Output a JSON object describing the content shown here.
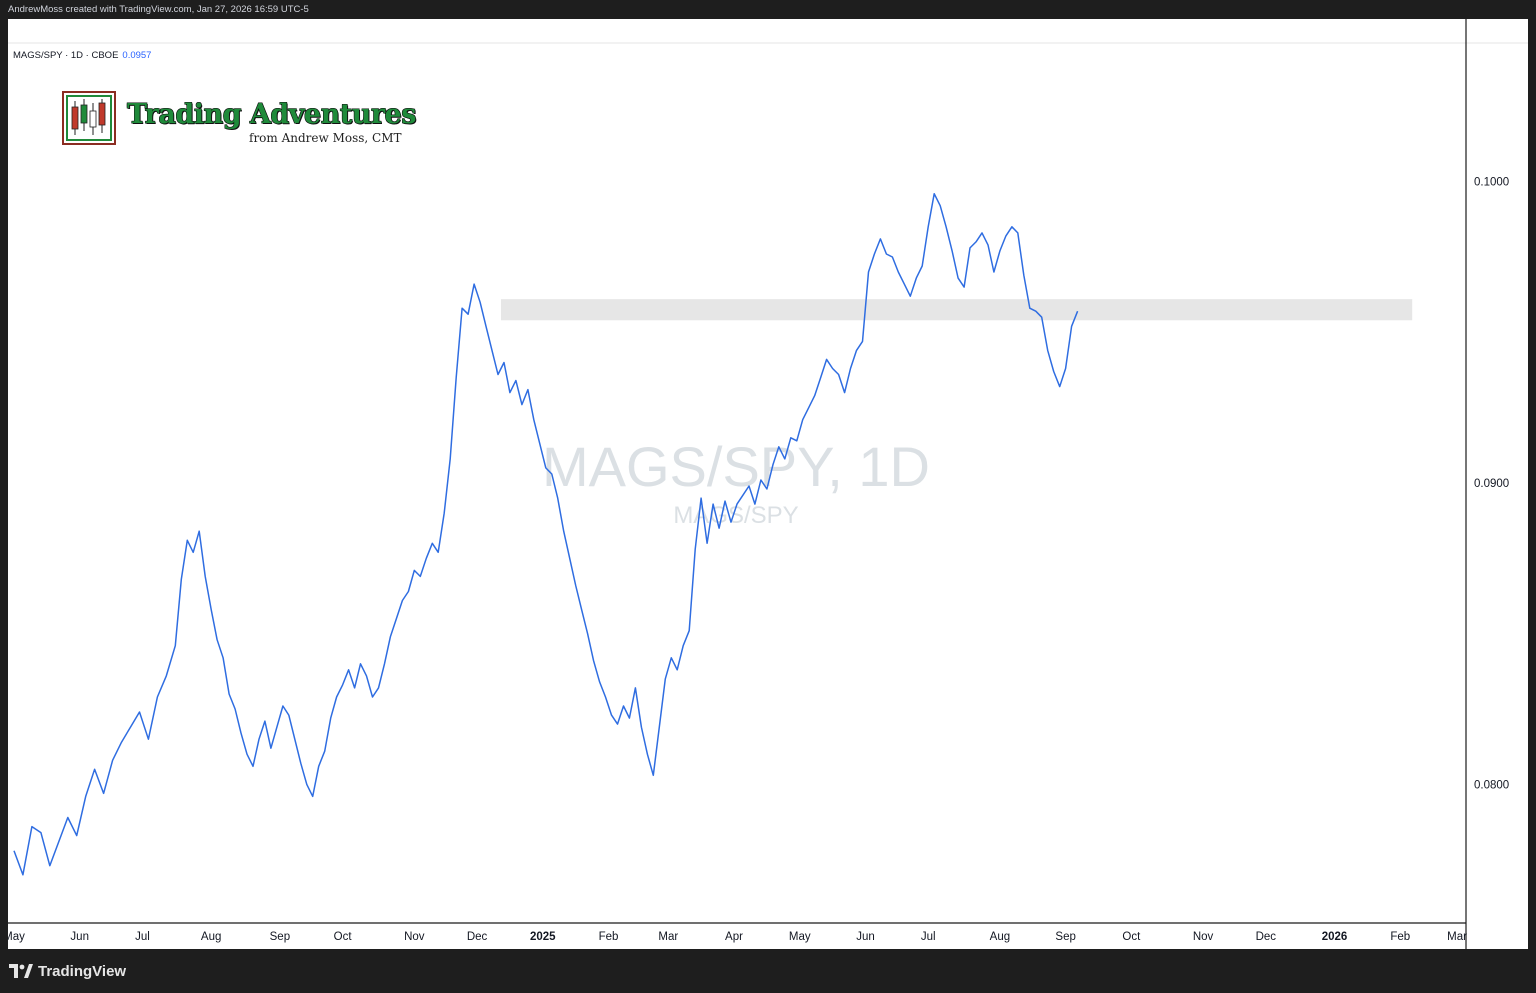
{
  "header": {
    "credit": "AndrewMoss created with TradingView.com, Jan 27, 2026 16:59 UTC-5"
  },
  "legend": {
    "symbol": "MAGS/SPY · 1D · CBOE",
    "last_value": "0.0957"
  },
  "brand": {
    "title": "Trading Adventures",
    "subtitle": "from Andrew Moss, CMT"
  },
  "watermark": {
    "line1": "MAGS/SPY, 1D",
    "line2": "MAGS/SPY"
  },
  "footer": {
    "logo_text": "TradingView"
  },
  "colors": {
    "line": "#2f6de1",
    "zone": "#e6e6e6",
    "accent_value": "#2962ff"
  },
  "chart_data": {
    "type": "line",
    "series": [
      {
        "values": [
          [
            0,
            0.0778
          ],
          [
            3,
            0.077
          ],
          [
            6,
            0.0786
          ],
          [
            9,
            0.0784
          ],
          [
            12,
            0.0773
          ],
          [
            15,
            0.0781
          ],
          [
            18,
            0.0789
          ],
          [
            21,
            0.0783
          ],
          [
            24,
            0.0796
          ],
          [
            27,
            0.0805
          ],
          [
            30,
            0.0797
          ],
          [
            33,
            0.0808
          ],
          [
            36,
            0.0814
          ],
          [
            39,
            0.0819
          ],
          [
            42,
            0.0824
          ],
          [
            45,
            0.0815
          ],
          [
            48,
            0.0829
          ],
          [
            51,
            0.0836
          ],
          [
            54,
            0.0846
          ],
          [
            56,
            0.0868
          ],
          [
            58,
            0.0881
          ],
          [
            60,
            0.0877
          ],
          [
            62,
            0.0884
          ],
          [
            64,
            0.0869
          ],
          [
            66,
            0.0858
          ],
          [
            68,
            0.0848
          ],
          [
            70,
            0.0842
          ],
          [
            72,
            0.083
          ],
          [
            74,
            0.0825
          ],
          [
            76,
            0.0817
          ],
          [
            78,
            0.081
          ],
          [
            80,
            0.0806
          ],
          [
            82,
            0.0815
          ],
          [
            84,
            0.0821
          ],
          [
            86,
            0.0812
          ],
          [
            88,
            0.0819
          ],
          [
            90,
            0.0826
          ],
          [
            92,
            0.0823
          ],
          [
            94,
            0.0815
          ],
          [
            96,
            0.0807
          ],
          [
            98,
            0.08
          ],
          [
            100,
            0.0796
          ],
          [
            102,
            0.0806
          ],
          [
            104,
            0.0811
          ],
          [
            106,
            0.0822
          ],
          [
            108,
            0.0829
          ],
          [
            110,
            0.0833
          ],
          [
            112,
            0.0838
          ],
          [
            114,
            0.0832
          ],
          [
            116,
            0.084
          ],
          [
            118,
            0.0836
          ],
          [
            120,
            0.0829
          ],
          [
            122,
            0.0832
          ],
          [
            124,
            0.084
          ],
          [
            126,
            0.0849
          ],
          [
            128,
            0.0855
          ],
          [
            130,
            0.0861
          ],
          [
            132,
            0.0864
          ],
          [
            134,
            0.0871
          ],
          [
            136,
            0.0869
          ],
          [
            138,
            0.0875
          ],
          [
            140,
            0.088
          ],
          [
            142,
            0.0877
          ],
          [
            144,
            0.089
          ],
          [
            146,
            0.0908
          ],
          [
            148,
            0.0935
          ],
          [
            150,
            0.0958
          ],
          [
            152,
            0.0956
          ],
          [
            154,
            0.0966
          ],
          [
            156,
            0.096
          ],
          [
            158,
            0.0952
          ],
          [
            160,
            0.0944
          ],
          [
            162,
            0.0936
          ],
          [
            164,
            0.094
          ],
          [
            166,
            0.093
          ],
          [
            168,
            0.0934
          ],
          [
            170,
            0.0926
          ],
          [
            172,
            0.0931
          ],
          [
            174,
            0.0921
          ],
          [
            176,
            0.0913
          ],
          [
            178,
            0.0905
          ],
          [
            180,
            0.0903
          ],
          [
            182,
            0.0895
          ],
          [
            184,
            0.0884
          ],
          [
            186,
            0.0875
          ],
          [
            188,
            0.0866
          ],
          [
            190,
            0.0858
          ],
          [
            192,
            0.085
          ],
          [
            194,
            0.0841
          ],
          [
            196,
            0.0834
          ],
          [
            198,
            0.0829
          ],
          [
            200,
            0.0823
          ],
          [
            202,
            0.082
          ],
          [
            204,
            0.0826
          ],
          [
            206,
            0.0822
          ],
          [
            208,
            0.0832
          ],
          [
            210,
            0.0819
          ],
          [
            212,
            0.081
          ],
          [
            214,
            0.0803
          ],
          [
            216,
            0.0819
          ],
          [
            218,
            0.0835
          ],
          [
            220,
            0.0842
          ],
          [
            222,
            0.0838
          ],
          [
            224,
            0.0846
          ],
          [
            226,
            0.0851
          ],
          [
            228,
            0.0878
          ],
          [
            230,
            0.0895
          ],
          [
            232,
            0.088
          ],
          [
            234,
            0.0893
          ],
          [
            236,
            0.0885
          ],
          [
            238,
            0.0894
          ],
          [
            240,
            0.0887
          ],
          [
            242,
            0.0893
          ],
          [
            244,
            0.0896
          ],
          [
            246,
            0.0899
          ],
          [
            248,
            0.0893
          ],
          [
            250,
            0.0901
          ],
          [
            252,
            0.0898
          ],
          [
            254,
            0.0906
          ],
          [
            256,
            0.0912
          ],
          [
            258,
            0.0908
          ],
          [
            260,
            0.0915
          ],
          [
            262,
            0.0914
          ],
          [
            264,
            0.0921
          ],
          [
            266,
            0.0925
          ],
          [
            268,
            0.0929
          ],
          [
            270,
            0.0935
          ],
          [
            272,
            0.0941
          ],
          [
            274,
            0.0938
          ],
          [
            276,
            0.0936
          ],
          [
            278,
            0.093
          ],
          [
            280,
            0.0938
          ],
          [
            282,
            0.0944
          ],
          [
            284,
            0.0947
          ],
          [
            286,
            0.097
          ],
          [
            288,
            0.0976
          ],
          [
            290,
            0.0981
          ],
          [
            292,
            0.0976
          ],
          [
            294,
            0.0975
          ],
          [
            296,
            0.097
          ],
          [
            298,
            0.0966
          ],
          [
            300,
            0.0962
          ],
          [
            302,
            0.0968
          ],
          [
            304,
            0.0972
          ],
          [
            306,
            0.0985
          ],
          [
            308,
            0.0996
          ],
          [
            310,
            0.0992
          ],
          [
            312,
            0.0985
          ],
          [
            314,
            0.0977
          ],
          [
            316,
            0.0968
          ],
          [
            318,
            0.0965
          ],
          [
            320,
            0.0978
          ],
          [
            322,
            0.098
          ],
          [
            324,
            0.0983
          ],
          [
            326,
            0.0979
          ],
          [
            328,
            0.097
          ],
          [
            330,
            0.0977
          ],
          [
            332,
            0.0982
          ],
          [
            334,
            0.0985
          ],
          [
            336,
            0.0983
          ],
          [
            338,
            0.0969
          ],
          [
            340,
            0.0958
          ],
          [
            342,
            0.0957
          ],
          [
            344,
            0.0955
          ],
          [
            346,
            0.0944
          ],
          [
            348,
            0.0937
          ],
          [
            350,
            0.0932
          ],
          [
            352,
            0.0938
          ],
          [
            354,
            0.0952
          ],
          [
            356,
            0.0957
          ]
        ]
      }
    ],
    "x_tick_labels": [
      "May",
      "Jun",
      "Jul",
      "Aug",
      "Sep",
      "Oct",
      "Nov",
      "Dec",
      "2025",
      "Feb",
      "Mar",
      "Apr",
      "May",
      "Jun",
      "Jul",
      "Aug",
      "Sep",
      "Oct",
      "Nov",
      "Dec",
      "2026",
      "Feb",
      "Mar"
    ],
    "x_tick_days": [
      0,
      22,
      43,
      66,
      89,
      110,
      134,
      155,
      177,
      199,
      219,
      241,
      263,
      285,
      306,
      330,
      352,
      374,
      398,
      419,
      442,
      464,
      483
    ],
    "bold_ticks": [
      "2025",
      "2026"
    ],
    "y_ticks": [
      "0.1000",
      "0.0900",
      "0.0800"
    ],
    "y_tick_values": [
      0.1,
      0.09,
      0.08
    ],
    "ylim": [
      0.0754,
      0.1046
    ],
    "xlim": [
      -2,
      486
    ],
    "highlight_zone": {
      "from": 0.0954,
      "to": 0.0961,
      "x_start": 163,
      "x_end": 468
    },
    "price_scale": "right",
    "grid": false
  }
}
